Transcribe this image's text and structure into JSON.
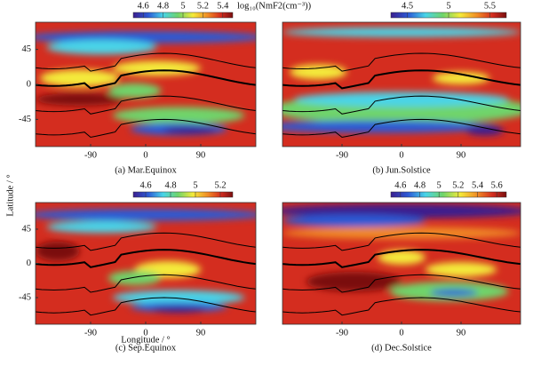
{
  "chart_data": [
    {
      "type": "map",
      "title": "(a) Mar.Equinox",
      "xlim": [
        -180,
        180
      ],
      "xticks": [
        -90,
        0,
        90
      ],
      "ylim": [
        -80,
        80
      ],
      "yticks": [
        45,
        0,
        -45
      ],
      "colorbar": {
        "lim": [
          4.5,
          5.5
        ],
        "ticks": [
          4.6,
          4.8,
          5,
          5.2,
          5.4
        ],
        "label": "log₁₀(NmF2(cm⁻³))"
      }
    },
    {
      "type": "map",
      "title": "(b) Jun.Solstice",
      "xlim": [
        -180,
        180
      ],
      "xticks": [
        -90,
        0,
        90
      ],
      "ylim": [
        -80,
        80
      ],
      "colorbar": {
        "lim": [
          4.3,
          5.7
        ],
        "ticks": [
          4.5,
          5,
          5.5
        ]
      }
    },
    {
      "type": "map",
      "title": "(c) Sep.Equinox",
      "xlim": [
        -180,
        180
      ],
      "xticks": [
        -90,
        0,
        90
      ],
      "ylim": [
        -80,
        80
      ],
      "yticks": [
        45,
        0,
        -45
      ],
      "xlabel": "Longitude / °",
      "ylabel": "Latitude / °",
      "colorbar": {
        "lim": [
          4.5,
          5.3
        ],
        "ticks": [
          4.6,
          4.8,
          5,
          5.2
        ]
      }
    },
    {
      "type": "map",
      "title": "(d) Dec.Solstice",
      "xlim": [
        -180,
        180
      ],
      "xticks": [
        -90,
        0,
        90
      ],
      "ylim": [
        -80,
        80
      ],
      "colorbar": {
        "lim": [
          4.5,
          5.7
        ],
        "ticks": [
          4.6,
          4.8,
          5,
          5.2,
          5.4,
          5.6
        ]
      }
    }
  ]
}
